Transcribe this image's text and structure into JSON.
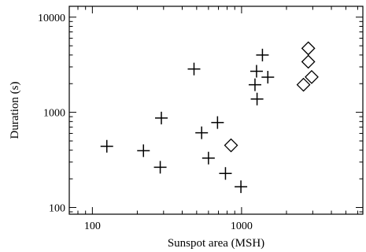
{
  "chart_data": {
    "type": "scatter",
    "xlabel": "Sunspot area (MSH)",
    "ylabel": "Duration (s)",
    "x_scale": "log",
    "y_scale": "log",
    "xlim": [
      70,
      6500
    ],
    "ylim": [
      85,
      13000
    ],
    "x_ticks": [
      {
        "value": 100,
        "label": "100"
      },
      {
        "value": 1000,
        "label": "1000"
      }
    ],
    "y_ticks": [
      {
        "value": 100,
        "label": "100"
      },
      {
        "value": 1000,
        "label": "1000"
      },
      {
        "value": 10000,
        "label": "10000"
      }
    ],
    "grid": false,
    "series": [
      {
        "marker": "plus",
        "color": "#000000",
        "points": [
          {
            "x": 125,
            "y": 440
          },
          {
            "x": 220,
            "y": 395
          },
          {
            "x": 285,
            "y": 265
          },
          {
            "x": 290,
            "y": 870
          },
          {
            "x": 480,
            "y": 2850
          },
          {
            "x": 540,
            "y": 610
          },
          {
            "x": 600,
            "y": 330
          },
          {
            "x": 690,
            "y": 780
          },
          {
            "x": 780,
            "y": 228
          },
          {
            "x": 990,
            "y": 165
          },
          {
            "x": 1230,
            "y": 1950
          },
          {
            "x": 1260,
            "y": 2700
          },
          {
            "x": 1270,
            "y": 1380
          },
          {
            "x": 1380,
            "y": 4000
          },
          {
            "x": 1500,
            "y": 2340
          }
        ]
      },
      {
        "marker": "diamond",
        "color": "#000000",
        "points": [
          {
            "x": 850,
            "y": 450
          },
          {
            "x": 2600,
            "y": 1950
          },
          {
            "x": 2800,
            "y": 4700
          },
          {
            "x": 2800,
            "y": 3400
          },
          {
            "x": 2950,
            "y": 2350
          }
        ]
      }
    ]
  }
}
